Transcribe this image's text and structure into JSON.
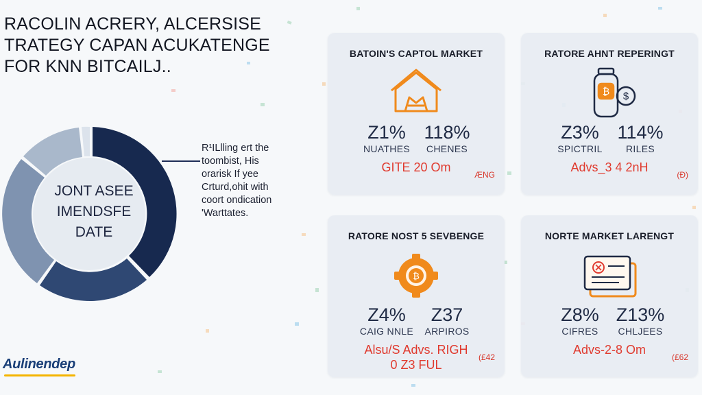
{
  "title": {
    "line1": "RACOLIN ACRERY, ALCERSISE",
    "line2": "TRATEGY CAPAN  ACUKATENGE",
    "line3": "FOR KNN BITCAILJ.."
  },
  "donut": {
    "label_line1": "JONT ASEE",
    "label_line2": "IMENDSFE",
    "label_line3": "DATE",
    "colors": {
      "dark": "#17294f",
      "mid": "#2f4873",
      "light": "#9fb0c6",
      "inner": "#e6ebf1"
    }
  },
  "note": {
    "line1": "R¹ILlling ert the",
    "line2": "toombist, His",
    "line3": "orarisk If yee",
    "line4": "Crturd,ohit with",
    "line5": "coort ondication",
    "line6": "'Warttates."
  },
  "cards": [
    {
      "title": "BATOIN'S CAPTOL MARKET",
      "icon": "tent-icon",
      "stat1_value": "Z1%",
      "stat1_label": "NUATHES",
      "stat2_value": "118%",
      "stat2_label": "CHENES",
      "promo": "GITE 20 Om",
      "promo2": "",
      "corner": "ÆNG"
    },
    {
      "title": "RATORE AHNT REPERINGT",
      "icon": "bitcoin-canister-icon",
      "stat1_value": "Z3%",
      "stat1_label": "SPICTRIL",
      "stat2_value": "114%",
      "stat2_label": "RILES",
      "promo": "Advs_3 4 2nH",
      "promo2": "",
      "corner": "(Ð)"
    },
    {
      "title": "RATORE NOST 5 SEVBENGE",
      "icon": "bitcoin-gear-icon",
      "stat1_value": "Z4%",
      "stat1_label": "CAIG NNLE",
      "stat2_value": "Z37",
      "stat2_label": "ARPIROS",
      "promo": "Alsu/S Advs. RIGH",
      "promo2": "0 Z3 FUL",
      "corner": "(£42"
    },
    {
      "title": "NORTE MARKET LARENGT",
      "icon": "certificate-icon",
      "stat1_value": "Z8%",
      "stat1_label": "CIFRES",
      "stat2_value": "Z13%",
      "stat2_label": "CHLJEES",
      "promo": "Advs-2-8 Om",
      "promo2": "",
      "corner": "(£62"
    }
  ],
  "logo": {
    "text": "Aulinendep"
  },
  "colors": {
    "accent_orange": "#f08a1c",
    "promo_red": "#e03a2e",
    "navy": "#17294f"
  }
}
